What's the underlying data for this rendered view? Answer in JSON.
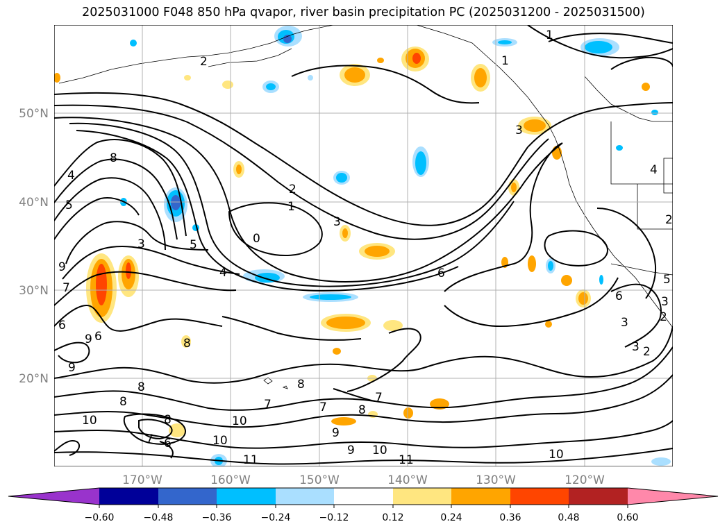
{
  "title": "2025031000 F048 850 hPa qvapor, river basin precipitation PC (2025031200 - 2025031500)",
  "map": {
    "lat_labels": [
      "50°N",
      "40°N",
      "30°N",
      "20°N"
    ],
    "lon_labels": [
      "170°W",
      "160°W",
      "150°W",
      "140°W",
      "130°W",
      "120°W"
    ],
    "contour_labels": [
      "1",
      "2",
      "0",
      "1",
      "2",
      "3",
      "4",
      "5",
      "6",
      "7",
      "8",
      "8",
      "9",
      "3",
      "4",
      "5",
      "6",
      "3",
      "2",
      "1",
      "4",
      "3",
      "5",
      "6",
      "7",
      "8",
      "9",
      "10",
      "10",
      "11",
      "10",
      "9",
      "8",
      "7",
      "6",
      "8",
      "9",
      "10",
      "7",
      "8",
      "9",
      "10",
      "11",
      "2",
      "3",
      "2",
      "3",
      "6",
      "7",
      "8"
    ]
  },
  "colorbar": {
    "ticks": [
      "−0.60",
      "−0.48",
      "−0.36",
      "−0.24",
      "−0.12",
      "0.12",
      "0.24",
      "0.36",
      "0.48",
      "0.60"
    ],
    "colors": [
      "#9933cc",
      "#000099",
      "#3366cc",
      "#00bfff",
      "#aadfff",
      "#ffffff",
      "#ffe680",
      "#ffa500",
      "#ff4500",
      "#b22222",
      "#ff88aa"
    ]
  }
}
